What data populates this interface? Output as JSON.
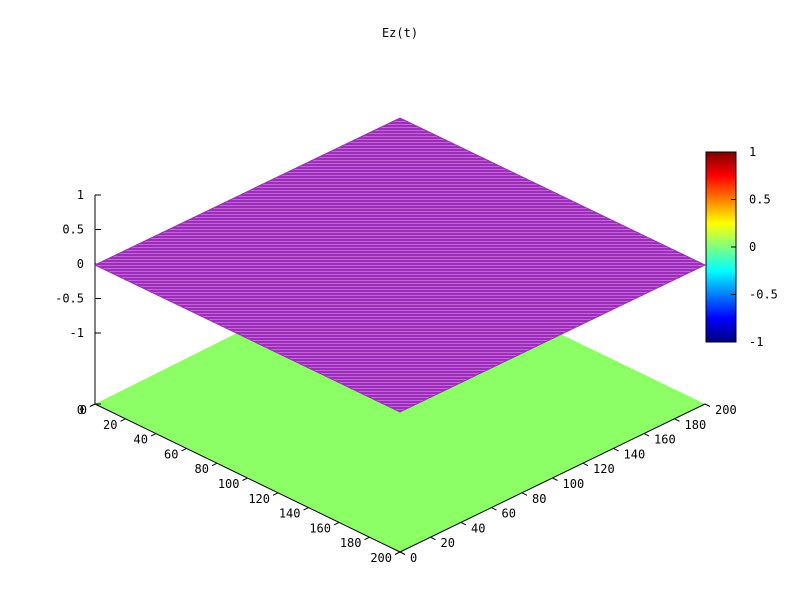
{
  "chart_data": {
    "type": "surface",
    "title": "Ez(t)",
    "x": {
      "range": [
        0,
        200
      ],
      "tick_labels": [
        "0",
        "20",
        "40",
        "60",
        "80",
        "100",
        "120",
        "140",
        "160",
        "180",
        "200"
      ]
    },
    "y": {
      "range": [
        0,
        200
      ],
      "tick_labels": [
        "0",
        "20",
        "40",
        "60",
        "80",
        "100",
        "120",
        "140",
        "160",
        "180",
        "200"
      ]
    },
    "z": {
      "range": [
        -1,
        1
      ],
      "tick_labels": [
        "1",
        "0.5",
        "0",
        "-0.5",
        "-1"
      ]
    },
    "surface": {
      "z_value": 0,
      "color": "#9b30b8",
      "mesh_color": "#cc66dd",
      "description_value": "flat at z = 0"
    },
    "base_map": {
      "color": "#8cff66",
      "value": 0
    },
    "colorbar": {
      "range": [
        -1,
        1
      ],
      "tick_labels": [
        "1",
        "0.5",
        "0",
        "-0.5",
        "-1"
      ],
      "colors": [
        "#00007f",
        "#0000ff",
        "#007fff",
        "#00ffff",
        "#7fff7f",
        "#ffff00",
        "#ff7f00",
        "#ff0000",
        "#7f0000"
      ]
    }
  }
}
